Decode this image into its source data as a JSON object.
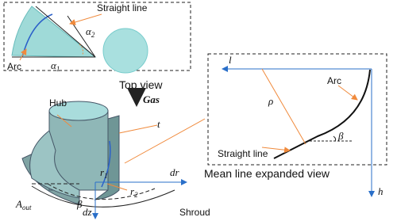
{
  "top_view": {
    "caption": "Top view",
    "labels": {
      "straight_line": "Straight line",
      "arc": "Arc",
      "alpha2": {
        "symbol": "α",
        "sub": "2"
      },
      "alpha1": {
        "symbol": "α",
        "sub": "1"
      }
    }
  },
  "isometric_view": {
    "hub": "Hub",
    "gas": "Gas",
    "thickness": "t",
    "r1": {
      "symbol": "r",
      "sub": "1"
    },
    "r2": {
      "symbol": "r",
      "sub": "2"
    },
    "dr": "dr",
    "dz": "dz",
    "beta": "β",
    "a_out": {
      "symbol": "A",
      "sub": "out"
    },
    "shroud": "Shroud"
  },
  "expanded_view": {
    "caption": "Mean line expanded view",
    "l": "l",
    "h": "h",
    "rho": "ρ",
    "arc": "Arc",
    "beta": "β",
    "straight_line": "Straight line"
  }
}
